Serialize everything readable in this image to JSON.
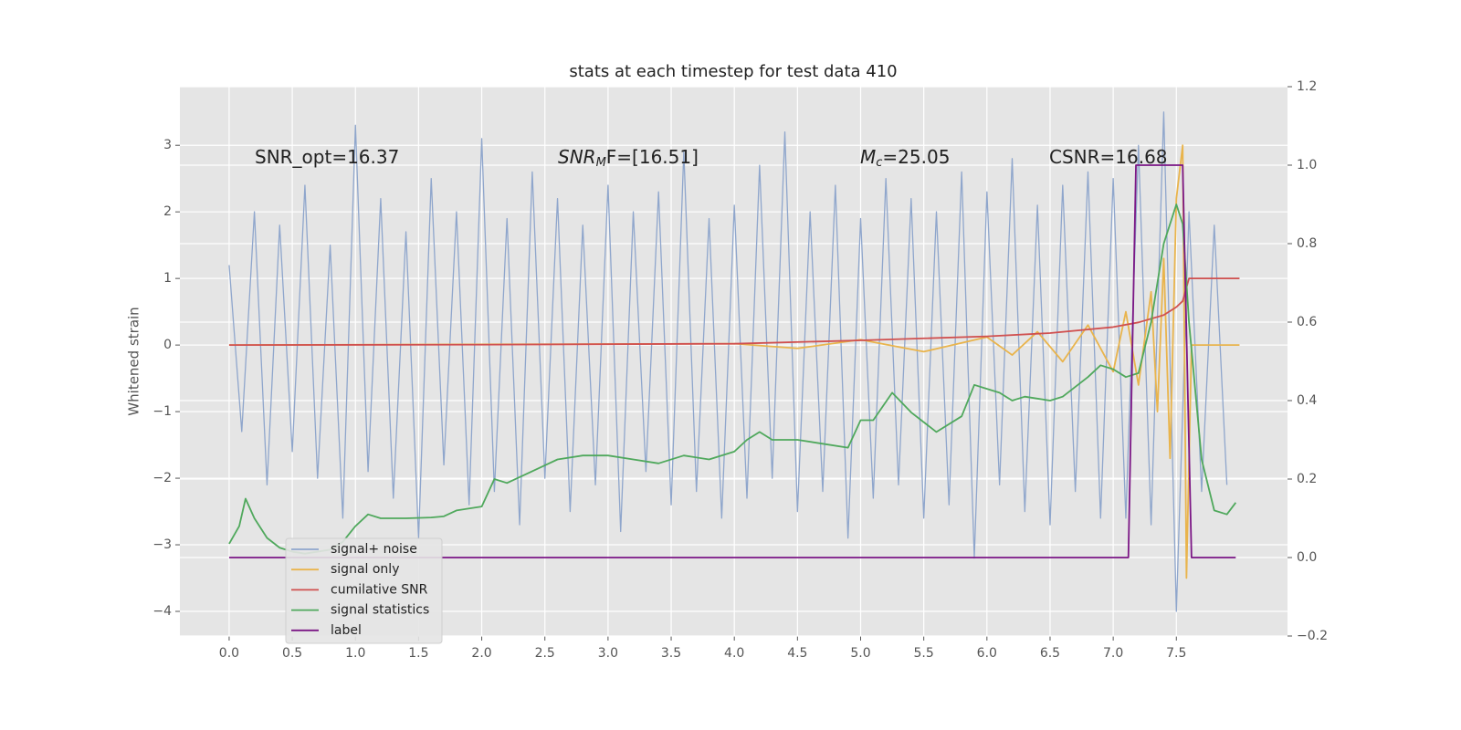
{
  "chart_data": {
    "type": "line",
    "title": "stats at each timestep for test data 410",
    "y_label": "Whitened strain",
    "annotations": [
      {
        "text": "SNR_opt=16.37"
      },
      {
        "text": "SNR",
        "sub": "M",
        "rest": "F=[16.51]"
      },
      {
        "text": "M",
        "sub": "c",
        "rest": "=25.05"
      },
      {
        "text": "CSNR=16.68"
      }
    ],
    "xlim": [
      -0.39,
      8.38
    ],
    "ylim": [
      -4.37,
      3.88
    ],
    "y2lim": [
      -0.2,
      1.2
    ],
    "xticks": [
      {
        "value": 0,
        "label": "0.0"
      },
      {
        "value": 0.5,
        "label": "0.5"
      },
      {
        "value": 1,
        "label": "1.0"
      },
      {
        "value": 1.5,
        "label": "1.5"
      },
      {
        "value": 2,
        "label": "2.0"
      },
      {
        "value": 2.5,
        "label": "2.5"
      },
      {
        "value": 3,
        "label": "3.0"
      },
      {
        "value": 3.5,
        "label": "3.5"
      },
      {
        "value": 4,
        "label": "4.0"
      },
      {
        "value": 4.5,
        "label": "4.5"
      },
      {
        "value": 5,
        "label": "5.0"
      },
      {
        "value": 5.5,
        "label": "5.5"
      },
      {
        "value": 6,
        "label": "6.0"
      },
      {
        "value": 6.5,
        "label": "6.5"
      },
      {
        "value": 7,
        "label": "7.0"
      },
      {
        "value": 7.5,
        "label": "7.5"
      }
    ],
    "yticks": [
      {
        "value": -4,
        "label": "−4"
      },
      {
        "value": -3,
        "label": "−3"
      },
      {
        "value": -2,
        "label": "−2"
      },
      {
        "value": -1,
        "label": "−1"
      },
      0,
      1,
      2,
      3
    ],
    "y2ticks": [
      {
        "value": -0.2,
        "label": "−0.2"
      },
      {
        "value": 0,
        "label": "0.0"
      },
      {
        "value": 0.2,
        "label": "0.2"
      },
      {
        "value": 0.4,
        "label": "0.4"
      },
      {
        "value": 0.6,
        "label": "0.6"
      },
      {
        "value": 0.8,
        "label": "0.8"
      },
      {
        "value": 1,
        "label": "1.0"
      },
      {
        "value": 1.2,
        "label": "1.2"
      }
    ],
    "grid": true,
    "legend": "lower left",
    "series": [
      {
        "name": "signal+ noise",
        "color": "#8fa6cc",
        "x": [
          0,
          0.1,
          0.2,
          0.3,
          0.4,
          0.5,
          0.6,
          0.7,
          0.8,
          0.9,
          1,
          1.1,
          1.2,
          1.3,
          1.4,
          1.5,
          1.6,
          1.7,
          1.8,
          1.9,
          2,
          2.1,
          2.2,
          2.3,
          2.4,
          2.5,
          2.6,
          2.7,
          2.8,
          2.9,
          3,
          3.1,
          3.2,
          3.3,
          3.4,
          3.5,
          3.6,
          3.7,
          3.8,
          3.9,
          4,
          4.1,
          4.2,
          4.3,
          4.4,
          4.5,
          4.6,
          4.7,
          4.8,
          4.9,
          5,
          5.1,
          5.2,
          5.3,
          5.4,
          5.5,
          5.6,
          5.7,
          5.8,
          5.9,
          6,
          6.1,
          6.2,
          6.3,
          6.4,
          6.5,
          6.6,
          6.7,
          6.8,
          6.9,
          7,
          7.1,
          7.2,
          7.3,
          7.4,
          7.5,
          7.6,
          7.7,
          7.8,
          7.9
        ],
        "values": [
          1.2,
          -1.3,
          2.0,
          -2.1,
          1.8,
          -1.6,
          2.4,
          -2.0,
          1.5,
          -2.6,
          3.3,
          -1.9,
          2.2,
          -2.3,
          1.7,
          -2.9,
          2.5,
          -1.8,
          2.0,
          -2.4,
          3.1,
          -2.2,
          1.9,
          -2.7,
          2.6,
          -2.0,
          2.2,
          -2.5,
          1.8,
          -2.1,
          2.4,
          -2.8,
          2.0,
          -1.9,
          2.3,
          -2.4,
          2.9,
          -2.2,
          1.9,
          -2.6,
          2.1,
          -2.3,
          2.7,
          -2.0,
          3.2,
          -2.5,
          2.0,
          -2.2,
          2.4,
          -2.9,
          1.9,
          -2.3,
          2.5,
          -2.1,
          2.2,
          -2.6,
          2.0,
          -2.4,
          2.6,
          -3.2,
          2.3,
          -2.1,
          2.8,
          -2.5,
          2.1,
          -2.7,
          2.4,
          -2.2,
          2.6,
          -2.6,
          2.5,
          -2.6,
          3.0,
          -2.7,
          3.5,
          -4.0,
          2.0,
          -2.2,
          1.8,
          -2.1
        ]
      },
      {
        "name": "signal only",
        "color": "#e9b44c",
        "x": [
          0,
          4.0,
          4.5,
          5.0,
          5.5,
          6.0,
          6.2,
          6.4,
          6.6,
          6.8,
          7.0,
          7.1,
          7.2,
          7.3,
          7.35,
          7.4,
          7.45,
          7.5,
          7.55,
          7.58,
          7.62,
          8.0
        ],
        "values": [
          0,
          0.02,
          -0.05,
          0.08,
          -0.1,
          0.12,
          -0.15,
          0.2,
          -0.25,
          0.3,
          -0.4,
          0.5,
          -0.6,
          0.8,
          -1.0,
          1.3,
          -1.7,
          2.2,
          3.0,
          -3.5,
          0,
          0
        ]
      },
      {
        "name": "cumilative SNR",
        "color": "#d0504f",
        "x": [
          0,
          2,
          4,
          5,
          6,
          6.5,
          7,
          7.2,
          7.4,
          7.5,
          7.55,
          7.6,
          8.0
        ],
        "values": [
          0,
          0.005,
          0.02,
          0.07,
          0.13,
          0.18,
          0.27,
          0.34,
          0.45,
          0.57,
          0.66,
          1.0,
          1.0
        ]
      },
      {
        "name": "signal statistics",
        "color": "#4fa85c",
        "axis": "y2",
        "x": [
          0,
          0.08,
          0.13,
          0.2,
          0.3,
          0.4,
          0.5,
          0.6,
          0.7,
          0.8,
          0.9,
          1.0,
          1.1,
          1.2,
          1.4,
          1.6,
          1.7,
          1.8,
          2.0,
          2.1,
          2.2,
          2.4,
          2.6,
          2.8,
          3.0,
          3.2,
          3.4,
          3.6,
          3.8,
          4.0,
          4.1,
          4.2,
          4.3,
          4.5,
          4.7,
          4.9,
          5.0,
          5.1,
          5.25,
          5.4,
          5.6,
          5.8,
          5.9,
          6.0,
          6.1,
          6.2,
          6.3,
          6.5,
          6.6,
          6.8,
          6.9,
          7.0,
          7.1,
          7.2,
          7.3,
          7.4,
          7.5,
          7.55,
          7.6,
          7.7,
          7.8,
          7.9,
          7.97
        ],
        "values": [
          0.035,
          0.08,
          0.15,
          0.1,
          0.05,
          0.025,
          0.015,
          0.01,
          0.015,
          0.02,
          0.04,
          0.08,
          0.11,
          0.1,
          0.1,
          0.102,
          0.105,
          0.12,
          0.13,
          0.2,
          0.19,
          0.22,
          0.25,
          0.26,
          0.26,
          0.25,
          0.24,
          0.26,
          0.25,
          0.27,
          0.3,
          0.32,
          0.3,
          0.3,
          0.29,
          0.28,
          0.35,
          0.35,
          0.42,
          0.37,
          0.32,
          0.36,
          0.44,
          0.43,
          0.42,
          0.4,
          0.41,
          0.4,
          0.41,
          0.46,
          0.49,
          0.48,
          0.46,
          0.47,
          0.6,
          0.8,
          0.9,
          0.85,
          0.6,
          0.25,
          0.12,
          0.11,
          0.14
        ]
      },
      {
        "name": "label",
        "color": "#7b1685",
        "axis": "y2",
        "x": [
          0,
          7.12,
          7.18,
          7.55,
          7.62,
          7.97
        ],
        "values": [
          0,
          0,
          1,
          1,
          0,
          0
        ]
      }
    ]
  }
}
